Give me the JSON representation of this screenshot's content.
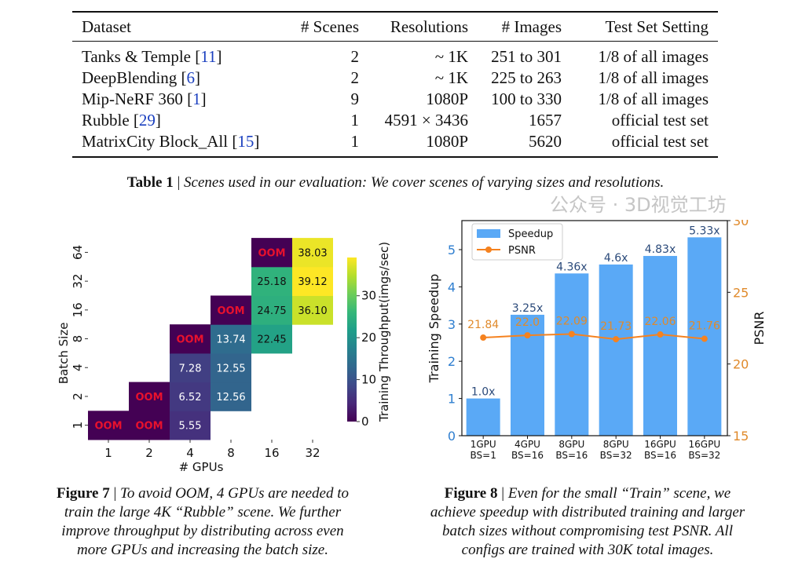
{
  "table": {
    "headers": [
      "Dataset",
      "# Scenes",
      "Resolutions",
      "# Images",
      "Test Set Setting"
    ],
    "rows": [
      {
        "name": "Tanks & Temple",
        "cite": "11",
        "scenes": "2",
        "res": "~ 1K",
        "images": "251 to 301",
        "test": "1/8 of all images"
      },
      {
        "name": "DeepBlending",
        "cite": "6",
        "scenes": "2",
        "res": "~ 1K",
        "images": "225 to 263",
        "test": "1/8 of all images"
      },
      {
        "name": "Mip-NeRF 360",
        "cite": "1",
        "scenes": "9",
        "res": "1080P",
        "images": "100 to 330",
        "test": "1/8 of all images"
      },
      {
        "name": "Rubble",
        "cite": "29",
        "scenes": "1",
        "res": "4591 × 3436",
        "images": "1657",
        "test": "official test set"
      },
      {
        "name": "MatrixCity Block_All",
        "cite": "15",
        "scenes": "1",
        "res": "1080P",
        "images": "5620",
        "test": "official test set"
      }
    ],
    "caption_label": "Table 1",
    "caption_sep": " | ",
    "caption_text": "Scenes used in our evaluation: We cover scenes of varying sizes and resolutions."
  },
  "figure7": {
    "caption_label": "Figure 7",
    "caption_lines": [
      "To avoid OOM, 4 GPUs are needed to",
      "train the large 4K “Rubble” scene. We further",
      "improve throughput by distributing across even",
      "more GPUs and increasing the batch size."
    ]
  },
  "figure8": {
    "caption_label": "Figure 8",
    "caption_lines": [
      "Even for the small “Train” scene, we",
      "achieve speedup with distributed training and larger",
      "batch sizes without compromising test PSNR. All",
      "configs are trained with 30K total images."
    ]
  },
  "watermark": "公众号 · 3D视觉工坊",
  "chart_data": [
    {
      "type": "heatmap",
      "xlabel": "# GPUs",
      "ylabel": "Batch Size",
      "x_categories": [
        "1",
        "2",
        "4",
        "8",
        "16",
        "32"
      ],
      "y_categories": [
        "1",
        "2",
        "4",
        "8",
        "16",
        "32",
        "64"
      ],
      "colorbar_label": "Training Throughput(imgs/sec)",
      "colorbar_ticks": [
        0,
        10,
        20,
        30
      ],
      "colorbar_range": [
        0,
        39.12
      ],
      "colormap": "viridis",
      "oom_label": "OOM",
      "oom_color": "#e8112d",
      "cells": [
        {
          "gpus": "1",
          "bs": "1",
          "value": "OOM"
        },
        {
          "gpus": "2",
          "bs": "1",
          "value": "OOM"
        },
        {
          "gpus": "2",
          "bs": "2",
          "value": "OOM"
        },
        {
          "gpus": "4",
          "bs": "1",
          "value": 5.55
        },
        {
          "gpus": "4",
          "bs": "2",
          "value": 6.52
        },
        {
          "gpus": "4",
          "bs": "4",
          "value": 7.28
        },
        {
          "gpus": "4",
          "bs": "8",
          "value": "OOM"
        },
        {
          "gpus": "8",
          "bs": "2",
          "value": 12.56
        },
        {
          "gpus": "8",
          "bs": "4",
          "value": 12.55
        },
        {
          "gpus": "8",
          "bs": "8",
          "value": 13.74
        },
        {
          "gpus": "8",
          "bs": "16",
          "value": "OOM"
        },
        {
          "gpus": "16",
          "bs": "8",
          "value": 22.45
        },
        {
          "gpus": "16",
          "bs": "16",
          "value": 24.75
        },
        {
          "gpus": "16",
          "bs": "32",
          "value": 25.18
        },
        {
          "gpus": "16",
          "bs": "64",
          "value": "OOM"
        },
        {
          "gpus": "32",
          "bs": "16",
          "value": 36.1
        },
        {
          "gpus": "32",
          "bs": "32",
          "value": 39.12
        },
        {
          "gpus": "32",
          "bs": "64",
          "value": 38.03
        }
      ]
    },
    {
      "type": "bar",
      "categories": [
        "1GPU\nBS=1",
        "4GPU\nBS=16",
        "8GPU\nBS=16",
        "8GPU\nBS=32",
        "16GPU\nBS=16",
        "16GPU\nBS=32"
      ],
      "category_lines": [
        [
          "1GPU",
          "BS=1"
        ],
        [
          "4GPU",
          "BS=16"
        ],
        [
          "8GPU",
          "BS=16"
        ],
        [
          "8GPU",
          "BS=32"
        ],
        [
          "16GPU",
          "BS=16"
        ],
        [
          "16GPU",
          "BS=32"
        ]
      ],
      "ylabel": "Training Speedup",
      "ylabel_right": "PSNR",
      "ylim": [
        0,
        5.78
      ],
      "ylim_right": [
        15,
        30
      ],
      "yticks": [
        0,
        1,
        2,
        3,
        4,
        5
      ],
      "yticks_right": [
        15,
        20,
        25,
        30
      ],
      "legend_position": "top-left",
      "series": [
        {
          "name": "Speedup",
          "type": "bar",
          "color": "#5aa9f6",
          "values": [
            1.0,
            3.25,
            4.36,
            4.6,
            4.83,
            5.33
          ],
          "labels": [
            "1.0x",
            "3.25x",
            "4.36x",
            "4.6x",
            "4.83x",
            "5.33x"
          ]
        },
        {
          "name": "PSNR",
          "type": "line",
          "axis": "right",
          "color": "#f5821f",
          "values": [
            21.84,
            22.0,
            22.09,
            21.73,
            22.06,
            21.76
          ],
          "labels": [
            "21.84",
            "22.0",
            "22.09",
            "21.73",
            "22.06",
            "21.76"
          ]
        }
      ],
      "left_axis_color": "#2f7fd0",
      "right_axis_color": "#e08a2b",
      "bar_label_color": "#2b4a7a"
    }
  ]
}
